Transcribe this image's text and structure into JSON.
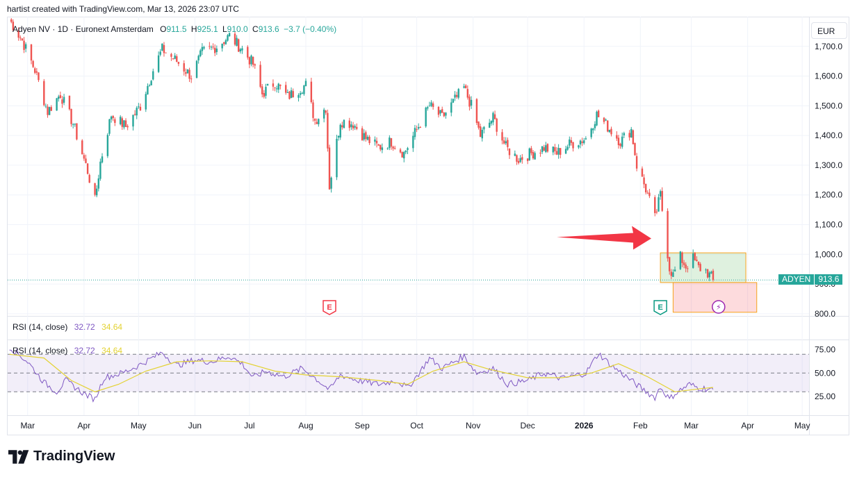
{
  "header": {
    "caption": "hartist created with TradingView.com, Mar 13, 2026 23:07 UTC"
  },
  "legend": {
    "symbol": "Adyen NV · 1D · Euronext Amsterdam",
    "o_label": "O",
    "o": "911.5",
    "h_label": "H",
    "h": "925.1",
    "l_label": "L",
    "l": "910.0",
    "c_label": "C",
    "c": "913.6",
    "change": "−3.7 (−0.40%)"
  },
  "currency": "EUR",
  "last_price_tag": {
    "symbol": "ADYEN",
    "value": "913.6"
  },
  "rsi_legend": {
    "name": "RSI (14, close)",
    "value": "32.72",
    "ma": "34.64"
  },
  "brand": {
    "name": "TradingView"
  },
  "colors": {
    "up": "#26a69a",
    "down": "#ef5350",
    "rsi": "#7e57c2",
    "rsi_ma": "#e3d232",
    "arrow": "#f23645",
    "band": "#7e57c2"
  },
  "chart_data": [
    {
      "type": "candlestick",
      "title": "Adyen NV · 1D · Euronext Amsterdam",
      "currency": "EUR",
      "y_ticks": [
        "800.0",
        "900.0",
        "1,000.0",
        "1,100.0",
        "1,200.0",
        "1,300.0",
        "1,400.0",
        "1,500.0",
        "1,600.0",
        "1,700.0"
      ],
      "y_tick_values": [
        800,
        900,
        1000,
        1100,
        1200,
        1300,
        1400,
        1500,
        1600,
        1700
      ],
      "ylim": [
        795,
        1800
      ],
      "x_ticks": [
        "Mar",
        "Apr",
        "May",
        "Jun",
        "Jul",
        "Aug",
        "Sep",
        "Oct",
        "Nov",
        "Dec",
        "2026",
        "Feb",
        "Mar",
        "Apr",
        "May"
      ],
      "x_tick_dates": [
        "2025-03-01",
        "2025-04-01",
        "2025-05-01",
        "2025-06-01",
        "2025-07-01",
        "2025-08-01",
        "2025-09-01",
        "2025-10-01",
        "2025-11-01",
        "2025-12-01",
        "2026-01-01",
        "2026-02-01",
        "2026-03-01",
        "2026-04-01",
        "2026-05-01"
      ],
      "xlim": [
        "2025-02-18",
        "2026-05-04"
      ],
      "last_close": 913.6,
      "close_path": [
        [
          "2025-02-19",
          1790
        ],
        [
          "2025-02-26",
          1720
        ],
        [
          "2025-03-05",
          1620
        ],
        [
          "2025-03-12",
          1480
        ],
        [
          "2025-03-19",
          1540
        ],
        [
          "2025-03-26",
          1440
        ],
        [
          "2025-04-03",
          1280
        ],
        [
          "2025-04-07",
          1180
        ],
        [
          "2025-04-10",
          1310
        ],
        [
          "2025-04-16",
          1470
        ],
        [
          "2025-04-24",
          1430
        ],
        [
          "2025-05-02",
          1500
        ],
        [
          "2025-05-09",
          1620
        ],
        [
          "2025-05-14",
          1690
        ],
        [
          "2025-05-22",
          1650
        ],
        [
          "2025-05-30",
          1600
        ],
        [
          "2025-06-05",
          1680
        ],
        [
          "2025-06-13",
          1700
        ],
        [
          "2025-06-20",
          1735
        ],
        [
          "2025-06-27",
          1690
        ],
        [
          "2025-07-03",
          1640
        ],
        [
          "2025-07-08",
          1540
        ],
        [
          "2025-07-15",
          1580
        ],
        [
          "2025-07-22",
          1530
        ],
        [
          "2025-07-29",
          1560
        ],
        [
          "2025-08-01",
          1570
        ],
        [
          "2025-08-06",
          1450
        ],
        [
          "2025-08-12",
          1495
        ],
        [
          "2025-08-14",
          1230
        ],
        [
          "2025-08-20",
          1450
        ],
        [
          "2025-08-27",
          1440
        ],
        [
          "2025-09-03",
          1390
        ],
        [
          "2025-09-10",
          1360
        ],
        [
          "2025-09-17",
          1380
        ],
        [
          "2025-09-24",
          1340
        ],
        [
          "2025-10-01",
          1420
        ],
        [
          "2025-10-08",
          1500
        ],
        [
          "2025-10-15",
          1460
        ],
        [
          "2025-10-22",
          1520
        ],
        [
          "2025-10-27",
          1560
        ],
        [
          "2025-10-31",
          1500
        ],
        [
          "2025-11-05",
          1400
        ],
        [
          "2025-11-12",
          1460
        ],
        [
          "2025-11-19",
          1360
        ],
        [
          "2025-11-26",
          1320
        ],
        [
          "2025-12-03",
          1340
        ],
        [
          "2025-12-10",
          1360
        ],
        [
          "2025-12-17",
          1340
        ],
        [
          "2025-12-24",
          1370
        ],
        [
          "2026-01-02",
          1390
        ],
        [
          "2026-01-08",
          1470
        ],
        [
          "2026-01-14",
          1430
        ],
        [
          "2026-01-21",
          1380
        ],
        [
          "2026-01-27",
          1420
        ],
        [
          "2026-01-30",
          1300
        ],
        [
          "2026-02-04",
          1220
        ],
        [
          "2026-02-09",
          1120
        ],
        [
          "2026-02-12",
          1200
        ],
        [
          "2026-02-13",
          1150
        ],
        [
          "2026-02-17",
          955
        ],
        [
          "2026-02-19",
          930
        ],
        [
          "2026-02-23",
          990
        ],
        [
          "2026-02-26",
          960
        ],
        [
          "2026-03-02",
          985
        ],
        [
          "2026-03-05",
          955
        ],
        [
          "2026-03-09",
          945
        ],
        [
          "2026-03-11",
          930
        ],
        [
          "2026-03-13",
          913.6
        ]
      ],
      "markers": [
        {
          "label": "E",
          "date": "2025-08-14",
          "kind": "earnings"
        },
        {
          "label": "E",
          "date": "2026-02-12",
          "kind": "earnings"
        },
        {
          "label": "⚡",
          "date": "2026-03-16",
          "kind": "event"
        }
      ],
      "annotations": {
        "arrow": {
          "from": [
            "2025-12-17",
            1058
          ],
          "to": [
            "2026-02-07",
            1058
          ]
        },
        "profit_zone": {
          "from": "2026-02-12",
          "to": "2026-03-31",
          "top": 1005,
          "bottom": 905
        },
        "loss_zone": {
          "from": "2026-02-19",
          "to": "2026-04-06",
          "top": 905,
          "bottom": 805
        }
      }
    },
    {
      "type": "line",
      "title": "RSI (14, close)",
      "y_ticks": [
        "25.00",
        "50.00",
        "75.00"
      ],
      "y_tick_values": [
        25,
        50,
        75
      ],
      "ylim": [
        5,
        85
      ],
      "bands": [
        30,
        50,
        70
      ],
      "series": [
        {
          "name": "RSI",
          "values": [
            [
              "2025-02-19",
              78
            ],
            [
              "2025-03-01",
              62
            ],
            [
              "2025-03-10",
              40
            ],
            [
              "2025-03-17",
              30
            ],
            [
              "2025-03-22",
              42
            ],
            [
              "2025-04-01",
              28
            ],
            [
              "2025-04-07",
              22
            ],
            [
              "2025-04-12",
              45
            ],
            [
              "2025-04-22",
              50
            ],
            [
              "2025-05-01",
              58
            ],
            [
              "2025-05-14",
              72
            ],
            [
              "2025-05-22",
              58
            ],
            [
              "2025-06-01",
              64
            ],
            [
              "2025-06-10",
              62
            ],
            [
              "2025-06-20",
              68
            ],
            [
              "2025-06-27",
              60
            ],
            [
              "2025-07-03",
              45
            ],
            [
              "2025-07-10",
              52
            ],
            [
              "2025-07-20",
              46
            ],
            [
              "2025-07-30",
              55
            ],
            [
              "2025-08-06",
              45
            ],
            [
              "2025-08-14",
              32
            ],
            [
              "2025-08-20",
              48
            ],
            [
              "2025-08-30",
              42
            ],
            [
              "2025-09-10",
              38
            ],
            [
              "2025-09-20",
              42
            ],
            [
              "2025-09-26",
              34
            ],
            [
              "2025-10-03",
              52
            ],
            [
              "2025-10-08",
              66
            ],
            [
              "2025-10-15",
              55
            ],
            [
              "2025-10-27",
              68
            ],
            [
              "2025-11-03",
              50
            ],
            [
              "2025-11-12",
              55
            ],
            [
              "2025-11-20",
              38
            ],
            [
              "2025-12-01",
              42
            ],
            [
              "2025-12-10",
              50
            ],
            [
              "2025-12-20",
              44
            ],
            [
              "2026-01-02",
              50
            ],
            [
              "2026-01-09",
              71
            ],
            [
              "2026-01-16",
              58
            ],
            [
              "2026-01-23",
              48
            ],
            [
              "2026-02-02",
              33
            ],
            [
              "2026-02-09",
              24
            ],
            [
              "2026-02-12",
              35
            ],
            [
              "2026-02-17",
              22
            ],
            [
              "2026-02-20",
              28
            ],
            [
              "2026-02-28",
              38
            ],
            [
              "2026-03-05",
              34
            ],
            [
              "2026-03-13",
              32.72
            ]
          ]
        },
        {
          "name": "RSI-based MA",
          "values": [
            [
              "2025-02-19",
              70
            ],
            [
              "2025-03-10",
              66
            ],
            [
              "2025-03-25",
              42
            ],
            [
              "2025-04-07",
              30
            ],
            [
              "2025-04-20",
              38
            ],
            [
              "2025-05-05",
              52
            ],
            [
              "2025-05-22",
              62
            ],
            [
              "2025-06-10",
              63
            ],
            [
              "2025-06-27",
              62
            ],
            [
              "2025-07-15",
              52
            ],
            [
              "2025-08-01",
              48
            ],
            [
              "2025-08-20",
              46
            ],
            [
              "2025-09-10",
              42
            ],
            [
              "2025-09-26",
              38
            ],
            [
              "2025-10-10",
              52
            ],
            [
              "2025-10-27",
              62
            ],
            [
              "2025-11-10",
              54
            ],
            [
              "2025-12-01",
              45
            ],
            [
              "2025-12-20",
              45
            ],
            [
              "2026-01-05",
              50
            ],
            [
              "2026-01-20",
              60
            ],
            [
              "2026-02-05",
              46
            ],
            [
              "2026-02-20",
              30
            ],
            [
              "2026-03-05",
              33
            ],
            [
              "2026-03-13",
              34.64
            ]
          ]
        }
      ]
    }
  ]
}
